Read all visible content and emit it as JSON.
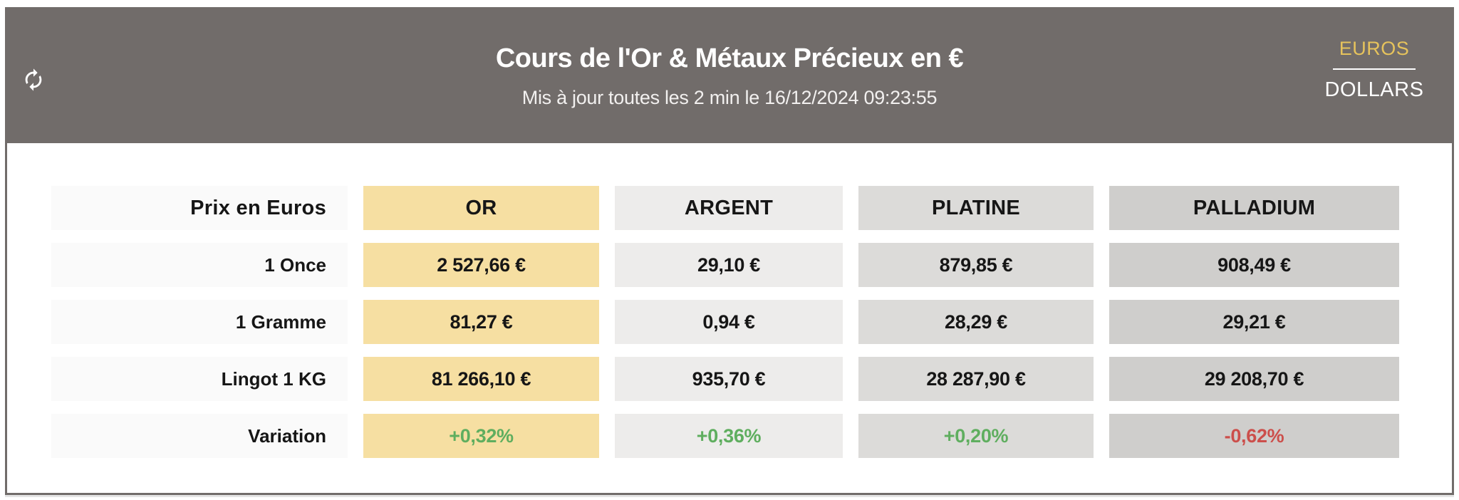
{
  "header": {
    "title": "Cours de l'Or & Métaux Précieux en €",
    "subtitle": "Mis à jour toutes les 2 min le 16/12/2024 09:23:55",
    "refresh_icon": "refresh-sync-icon",
    "currency_toggle": {
      "active_label": "EUROS",
      "inactive_label": "DOLLARS",
      "active_color": "#e6c35c",
      "inactive_color": "#ffffff"
    },
    "background_color": "#716c6a"
  },
  "table": {
    "corner_label": "Prix en Euros",
    "columns": [
      {
        "id": "or",
        "label": "OR",
        "color": "#f6dfa2"
      },
      {
        "id": "argent",
        "label": "ARGENT",
        "color": "#edeceb"
      },
      {
        "id": "platine",
        "label": "PLATINE",
        "color": "#dcdbd9"
      },
      {
        "id": "palladium",
        "label": "PALLADIUM",
        "color": "#cfcecc"
      }
    ],
    "rows": [
      {
        "id": "once",
        "label": "1 Once",
        "values": [
          "2 527,66 €",
          "29,10 €",
          "879,85 €",
          "908,49 €"
        ]
      },
      {
        "id": "gramme",
        "label": "1 Gramme",
        "values": [
          "81,27 €",
          "0,94 €",
          "28,29 €",
          "29,21 €"
        ]
      },
      {
        "id": "lingot",
        "label": "Lingot 1 KG",
        "values": [
          "81 266,10 €",
          "935,70 €",
          "28 287,90 €",
          "29 208,70 €"
        ]
      },
      {
        "id": "variation",
        "label": "Variation",
        "values": [
          "+0,32%",
          "+0,36%",
          "+0,20%",
          "-0,62%"
        ],
        "value_colors": [
          "#5fae5f",
          "#5fae5f",
          "#5fae5f",
          "#cc4f4b"
        ]
      }
    ],
    "label_cell_color": "#fafafa",
    "positive_color": "#5fae5f",
    "negative_color": "#cc4f4b"
  }
}
